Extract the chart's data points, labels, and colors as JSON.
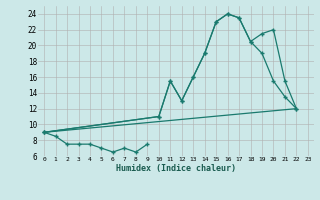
{
  "xlabel": "Humidex (Indice chaleur)",
  "background_color": "#cce8e8",
  "grid_color": "#b0b0b0",
  "line_color": "#1a7a6e",
  "xlim": [
    -0.5,
    23.5
  ],
  "ylim": [
    6,
    25
  ],
  "xticks": [
    0,
    1,
    2,
    3,
    4,
    5,
    6,
    7,
    8,
    9,
    10,
    11,
    12,
    13,
    14,
    15,
    16,
    17,
    18,
    19,
    20,
    21,
    22,
    23
  ],
  "yticks": [
    6,
    8,
    10,
    12,
    14,
    16,
    18,
    20,
    22,
    24
  ],
  "curve1_x": [
    0,
    1,
    2,
    3,
    4,
    5,
    6,
    7,
    8,
    9
  ],
  "curve1_y": [
    9,
    8.5,
    7.5,
    7.5,
    7.5,
    7,
    6.5,
    7,
    6.5,
    7.5
  ],
  "curve2_x": [
    0,
    9,
    10,
    11,
    12,
    13,
    14,
    15,
    16,
    17,
    18,
    19,
    20,
    21,
    22
  ],
  "curve2_y": [
    9,
    9,
    11,
    15.5,
    13,
    16,
    19,
    23,
    24,
    23.5,
    20.5,
    21.5,
    22,
    15.5,
    12
  ],
  "curve3_x": [
    0,
    9,
    10,
    11,
    12,
    13,
    14,
    15,
    16,
    17,
    18,
    19,
    20,
    21,
    22
  ],
  "curve3_y": [
    9,
    9,
    11,
    15.5,
    13,
    16,
    19,
    23,
    24,
    23.5,
    20.5,
    19,
    15.5,
    13.5,
    12
  ],
  "curve4_x": [
    0,
    22
  ],
  "curve4_y": [
    9,
    12
  ]
}
